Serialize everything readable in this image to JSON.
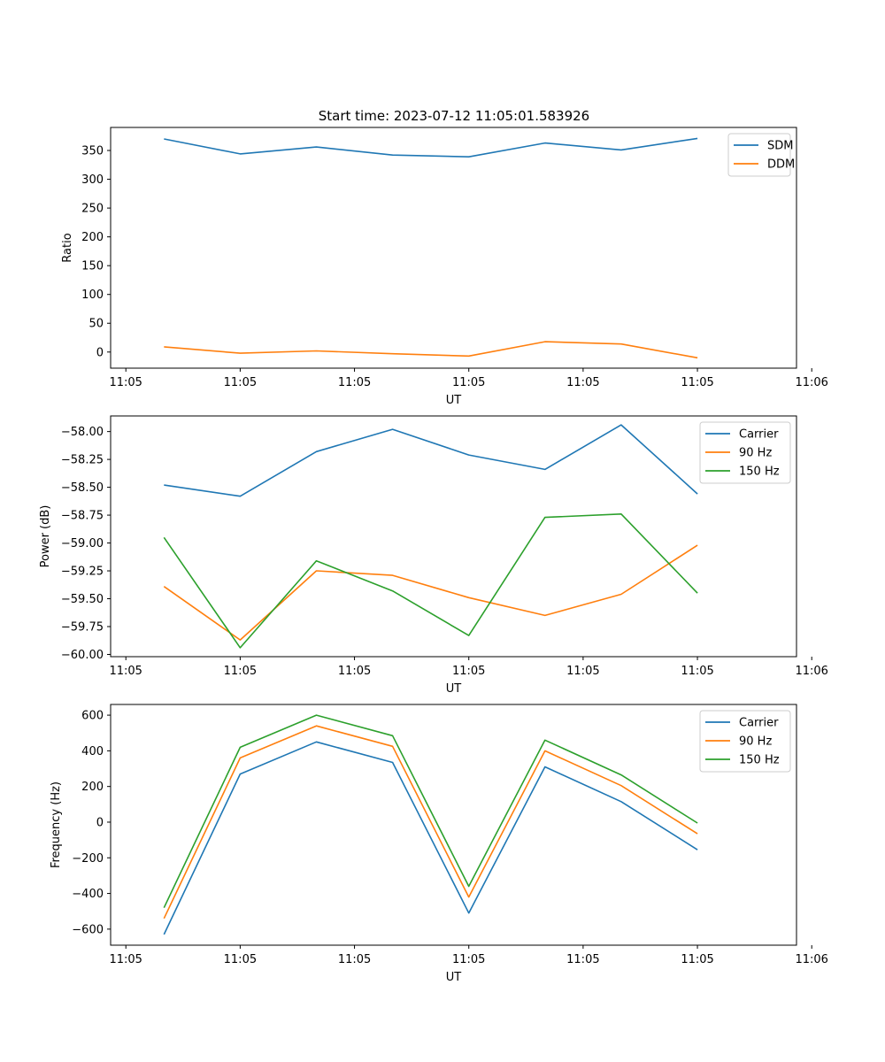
{
  "figure": {
    "title": "Start time: 2023-07-12 11:05:01.583926"
  },
  "colors": {
    "blue": "#1f77b4",
    "orange": "#ff7f0e",
    "green": "#2ca02c",
    "axis": "#000000"
  },
  "chart_data": [
    {
      "type": "line",
      "title": "Start time: 2023-07-12 11:05:01.583926",
      "xlabel": "UT",
      "ylabel": "Ratio",
      "x": [
        1,
        2,
        3,
        4,
        5,
        6,
        7,
        8
      ],
      "xlim": [
        0.3,
        9.3
      ],
      "x_ticks": [
        0.5,
        2,
        3.5,
        5,
        6.5,
        8,
        9.5
      ],
      "x_tick_labels": [
        "11:05",
        "11:05",
        "11:05",
        "11:05",
        "11:05",
        "11:05",
        "11:06"
      ],
      "ylim": [
        -28,
        390
      ],
      "y_ticks": [
        0,
        50,
        100,
        150,
        200,
        250,
        300,
        350
      ],
      "y_tick_labels": [
        "0",
        "50",
        "100",
        "150",
        "200",
        "250",
        "300",
        "350"
      ],
      "legend": "top-right",
      "series": [
        {
          "name": "SDM",
          "color": "#1f77b4",
          "values": [
            370,
            344,
            356,
            342,
            339,
            363,
            351,
            371
          ]
        },
        {
          "name": "DDM",
          "color": "#ff7f0e",
          "values": [
            9,
            -2,
            2,
            -3,
            -7,
            18,
            14,
            -10
          ]
        }
      ]
    },
    {
      "type": "line",
      "title": "",
      "xlabel": "UT",
      "ylabel": "Power (dB)",
      "x": [
        1,
        2,
        3,
        4,
        5,
        6,
        7,
        8
      ],
      "xlim": [
        0.3,
        9.3
      ],
      "x_ticks": [
        0.5,
        2,
        3.5,
        5,
        6.5,
        8,
        9.5
      ],
      "x_tick_labels": [
        "11:05",
        "11:05",
        "11:05",
        "11:05",
        "11:05",
        "11:05",
        "11:06"
      ],
      "ylim": [
        -60.02,
        -57.86
      ],
      "y_ticks": [
        -58.0,
        -58.25,
        -58.5,
        -58.75,
        -59.0,
        -59.25,
        -59.5,
        -59.75,
        -60.0
      ],
      "y_tick_labels": [
        "−58.00",
        "−58.25",
        "−58.50",
        "−58.75",
        "−59.00",
        "−59.25",
        "−59.50",
        "−59.75",
        "−60.00"
      ],
      "legend": "top-right",
      "series": [
        {
          "name": "Carrier",
          "color": "#1f77b4",
          "values": [
            -58.48,
            -58.58,
            -58.18,
            -57.98,
            -58.21,
            -58.34,
            -57.94,
            -58.56
          ]
        },
        {
          "name": "90 Hz",
          "color": "#ff7f0e",
          "values": [
            -59.39,
            -59.87,
            -59.25,
            -59.29,
            -59.49,
            -59.65,
            -59.46,
            -59.02
          ]
        },
        {
          "name": "150 Hz",
          "color": "#2ca02c",
          "values": [
            -58.95,
            -59.94,
            -59.16,
            -59.43,
            -59.83,
            -58.77,
            -58.74,
            -59.45
          ]
        }
      ]
    },
    {
      "type": "line",
      "title": "",
      "xlabel": "UT",
      "ylabel": "Frequency (Hz)",
      "x": [
        1,
        2,
        3,
        4,
        5,
        6,
        7,
        8
      ],
      "xlim": [
        0.3,
        9.3
      ],
      "x_ticks": [
        0.5,
        2,
        3.5,
        5,
        6.5,
        8,
        9.5
      ],
      "x_tick_labels": [
        "11:05",
        "11:05",
        "11:05",
        "11:05",
        "11:05",
        "11:05",
        "11:06"
      ],
      "ylim": [
        -690,
        660
      ],
      "y_ticks": [
        -600,
        -400,
        -200,
        0,
        200,
        400,
        600
      ],
      "y_tick_labels": [
        "−600",
        "−400",
        "−200",
        "0",
        "200",
        "400",
        "600"
      ],
      "legend": "top-right",
      "series": [
        {
          "name": "Carrier",
          "color": "#1f77b4",
          "values": [
            -630,
            270,
            450,
            335,
            -510,
            310,
            115,
            -155
          ]
        },
        {
          "name": "90 Hz",
          "color": "#ff7f0e",
          "values": [
            -540,
            360,
            540,
            425,
            -420,
            400,
            205,
            -65
          ]
        },
        {
          "name": "150 Hz",
          "color": "#2ca02c",
          "values": [
            -480,
            420,
            600,
            485,
            -360,
            460,
            265,
            -5
          ]
        }
      ]
    }
  ]
}
